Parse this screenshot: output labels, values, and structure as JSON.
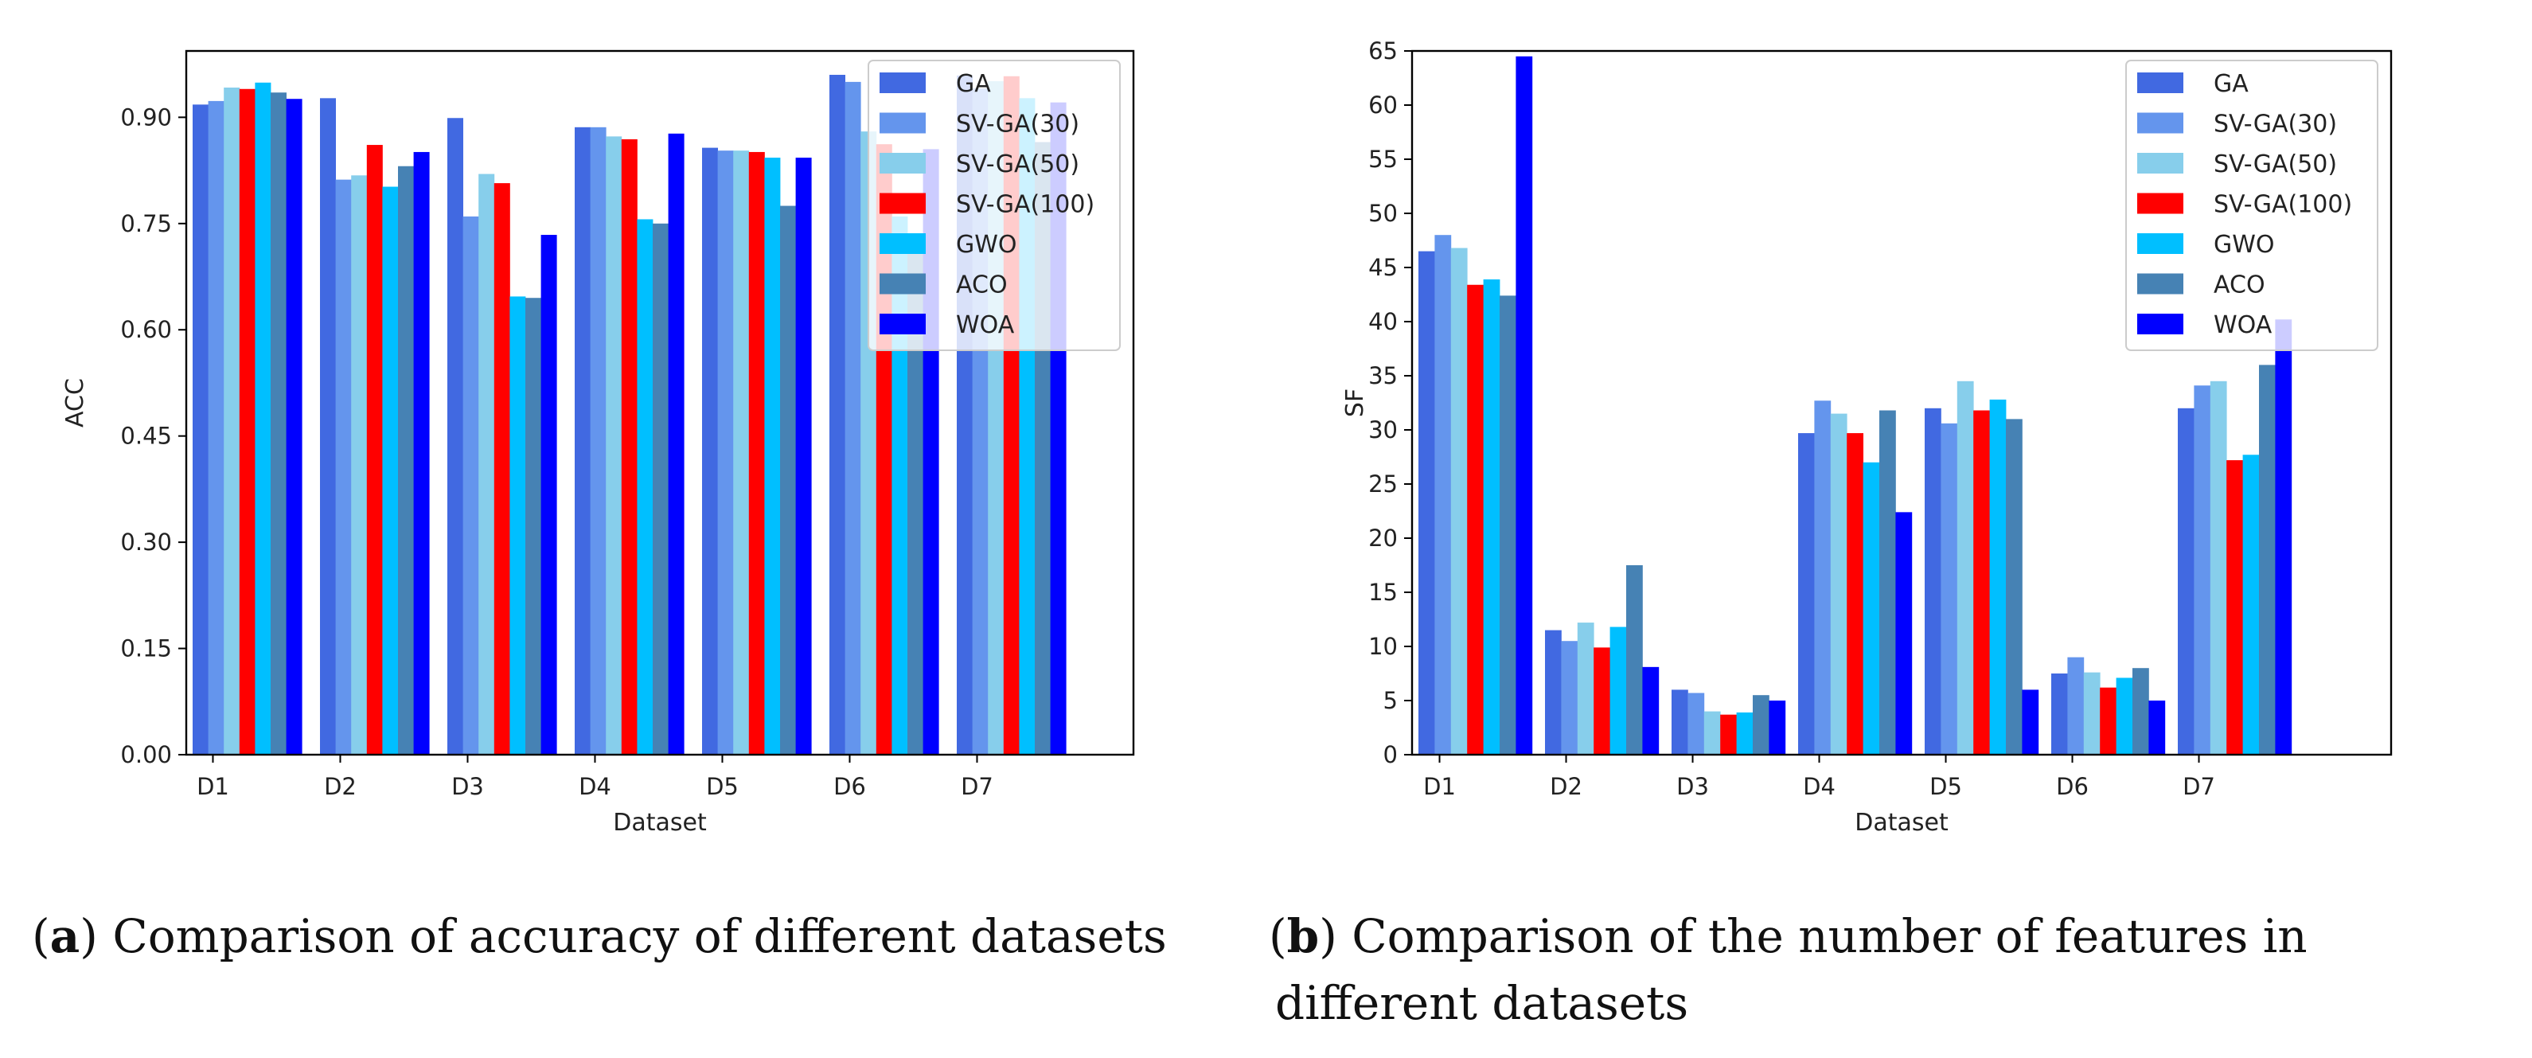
{
  "chart_data": [
    {
      "type": "bar",
      "ylabel": "ACC",
      "xlabel": "Dataset",
      "ylim": [
        0,
        0.9937
      ],
      "yticks": [
        "0.00",
        "0.15",
        "0.30",
        "0.45",
        "0.60",
        "0.75",
        "0.90"
      ],
      "ytick_values": [
        0,
        0.15,
        0.3,
        0.45,
        0.6,
        0.75,
        0.9
      ],
      "categories": [
        "D1",
        "D2",
        "D3",
        "D4",
        "D5",
        "D6",
        "D7"
      ],
      "legend_position": "top-right",
      "series": [
        {
          "name": "GA",
          "color": "#4169E1",
          "values": [
            0.918,
            0.927,
            0.899,
            0.886,
            0.857,
            0.96,
            0.959
          ]
        },
        {
          "name": "SV-GA(30)",
          "color": "#6495ED",
          "values": [
            0.923,
            0.812,
            0.76,
            0.886,
            0.853,
            0.95,
            0.941
          ]
        },
        {
          "name": "SV-GA(50)",
          "color": "#87CEEB",
          "values": [
            0.942,
            0.818,
            0.82,
            0.873,
            0.853,
            0.88,
            0.951
          ]
        },
        {
          "name": "SV-GA(100)",
          "color": "#FF0000",
          "values": [
            0.94,
            0.861,
            0.807,
            0.869,
            0.851,
            0.862,
            0.958
          ]
        },
        {
          "name": "GWO",
          "color": "#00BFFF",
          "values": [
            0.949,
            0.802,
            0.647,
            0.756,
            0.843,
            0.76,
            0.927
          ]
        },
        {
          "name": "ACO",
          "color": "#4682B4",
          "values": [
            0.935,
            0.831,
            0.645,
            0.75,
            0.775,
            0.72,
            0.865
          ]
        },
        {
          "name": "WOA",
          "color": "#0000FF",
          "values": [
            0.926,
            0.851,
            0.734,
            0.877,
            0.843,
            0.855,
            0.921
          ]
        }
      ]
    },
    {
      "type": "bar",
      "ylabel": "SF",
      "xlabel": "Dataset",
      "ylim": [
        0,
        65
      ],
      "yticks": [
        "0",
        "5",
        "10",
        "15",
        "20",
        "25",
        "30",
        "35",
        "40",
        "45",
        "50",
        "55",
        "60",
        "65"
      ],
      "ytick_values": [
        0,
        5,
        10,
        15,
        20,
        25,
        30,
        35,
        40,
        45,
        50,
        55,
        60,
        65
      ],
      "categories": [
        "D1",
        "D2",
        "D3",
        "D4",
        "D5",
        "D6",
        "D7"
      ],
      "legend_position": "top-right",
      "series": [
        {
          "name": "GA",
          "color": "#4169E1",
          "values": [
            46.5,
            11.5,
            6.0,
            29.7,
            32.0,
            7.5,
            32.0
          ]
        },
        {
          "name": "SV-GA(30)",
          "color": "#6495ED",
          "values": [
            48.0,
            10.5,
            5.7,
            32.7,
            30.6,
            9.0,
            34.1
          ]
        },
        {
          "name": "SV-GA(50)",
          "color": "#87CEEB",
          "values": [
            46.8,
            12.2,
            4.0,
            31.5,
            34.5,
            7.6,
            34.5
          ]
        },
        {
          "name": "SV-GA(100)",
          "color": "#FF0000",
          "values": [
            43.4,
            9.9,
            3.7,
            29.7,
            31.8,
            6.2,
            27.2
          ]
        },
        {
          "name": "GWO",
          "color": "#00BFFF",
          "values": [
            43.9,
            11.8,
            3.9,
            27.0,
            32.8,
            7.1,
            27.7
          ]
        },
        {
          "name": "ACO",
          "color": "#4682B4",
          "values": [
            42.4,
            17.5,
            5.5,
            31.8,
            31.0,
            8.0,
            36.0
          ]
        },
        {
          "name": "WOA",
          "color": "#0000FF",
          "values": [
            64.5,
            8.1,
            5.0,
            22.4,
            6.0,
            5.0,
            40.2
          ]
        }
      ]
    }
  ],
  "captions": {
    "a_label": "a",
    "a_text": "Comparison of accuracy of different datasets",
    "b_label": "b",
    "b_text_line1": "Comparison of the number of features in",
    "b_text_line2": "different datasets"
  }
}
